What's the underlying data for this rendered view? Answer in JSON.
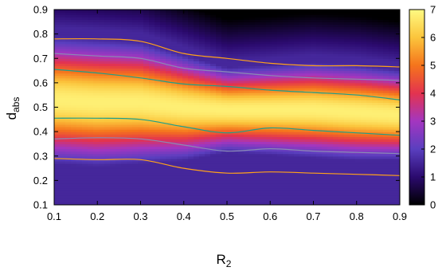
{
  "chart_data": {
    "type": "heatmap",
    "title": "",
    "xlabel": {
      "main": "R",
      "sub": "2"
    },
    "ylabel": {
      "main": "d",
      "sub": "abs"
    },
    "xlim": [
      0.1,
      0.9
    ],
    "ylim": [
      0.1,
      0.9
    ],
    "x_ticks": [
      "0.1",
      "0.2",
      "0.3",
      "0.4",
      "0.5",
      "0.6",
      "0.7",
      "0.8",
      "0.9"
    ],
    "y_ticks": [
      "0.1",
      "0.2",
      "0.3",
      "0.4",
      "0.5",
      "0.6",
      "0.7",
      "0.8",
      "0.9"
    ],
    "colorbar": {
      "min": 0,
      "max": 7,
      "ticks": [
        "0",
        "1",
        "2",
        "3",
        "4",
        "5",
        "6",
        "7"
      ]
    },
    "colormap": [
      "#000000",
      "#2b0a6e",
      "#5a3fbf",
      "#a336c0",
      "#e3334f",
      "#f5741c",
      "#fbc53c",
      "#fffa82"
    ],
    "description_values": {
      "peak_center_d": [
        0.53,
        0.52,
        0.52,
        0.5,
        0.49,
        0.49,
        0.49,
        0.48,
        0.47
      ],
      "peak_half_width": [
        0.24,
        0.24,
        0.23,
        0.2,
        0.16,
        0.17,
        0.18,
        0.18,
        0.17
      ],
      "x_at": [
        0.1,
        0.2,
        0.3,
        0.4,
        0.5,
        0.6,
        0.7,
        0.8,
        0.9
      ]
    },
    "contours": [
      {
        "level": 2,
        "color": "#ffa21a",
        "upper_d": [
          0.78,
          0.78,
          0.77,
          0.72,
          0.7,
          0.68,
          0.67,
          0.67,
          0.665
        ],
        "lower_d": [
          0.29,
          0.285,
          0.285,
          0.25,
          0.23,
          0.235,
          0.23,
          0.225,
          0.22
        ]
      },
      {
        "level": 3,
        "color": "#8a8ab4",
        "upper_d": [
          0.72,
          0.71,
          0.7,
          0.66,
          0.645,
          0.63,
          0.62,
          0.615,
          0.61
        ],
        "lower_d": [
          0.37,
          0.375,
          0.37,
          0.345,
          0.32,
          0.33,
          0.32,
          0.315,
          0.31
        ]
      },
      {
        "level": 4,
        "color": "#1f9e89",
        "upper_d": [
          0.655,
          0.64,
          0.62,
          0.595,
          0.585,
          0.57,
          0.56,
          0.55,
          0.53
        ],
        "lower_d": [
          0.455,
          0.455,
          0.45,
          0.42,
          0.395,
          0.415,
          0.405,
          0.395,
          0.385
        ]
      }
    ]
  }
}
